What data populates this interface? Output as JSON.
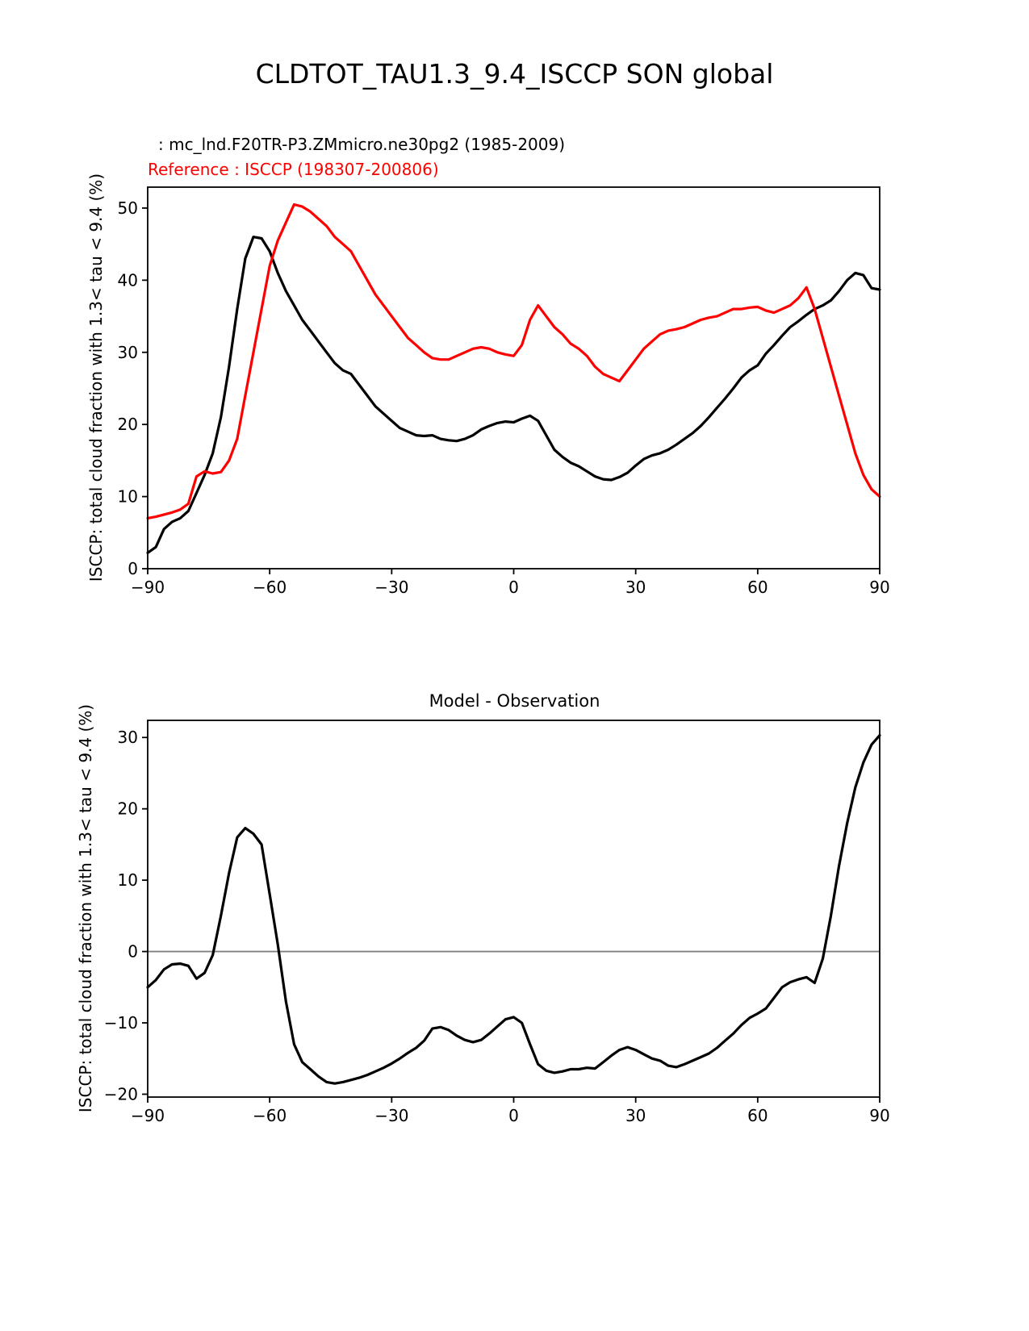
{
  "page": {
    "title": "CLDTOT_TAU1.3_9.4_ISCCP SON global",
    "background": "#ffffff"
  },
  "chart_data": [
    {
      "type": "line",
      "panel": "top",
      "model_label": ": mc_lnd.F20TR-P3.ZMmicro.ne30pg2 (1985-2009)",
      "reference_label": "Reference : ISCCP (198307-200806)",
      "ylabel": "ISCCP: total cloud fraction with 1.3< tau < 9.4 (%)",
      "xlabel": "",
      "xlim": [
        -90,
        90
      ],
      "ylim": [
        0,
        52.9
      ],
      "xticks": [
        -90,
        -60,
        -30,
        0,
        30,
        60,
        90
      ],
      "yticks": [
        0,
        10,
        20,
        30,
        40,
        50
      ],
      "grid": false,
      "legend_position": "labels-above-left",
      "axis_color": "#000000",
      "x": [
        -90,
        -88,
        -86,
        -84,
        -82,
        -80,
        -78,
        -76,
        -74,
        -72,
        -70,
        -68,
        -66,
        -64,
        -62,
        -60,
        -58,
        -56,
        -54,
        -52,
        -50,
        -48,
        -46,
        -44,
        -42,
        -40,
        -38,
        -36,
        -34,
        -32,
        -30,
        -28,
        -26,
        -24,
        -22,
        -20,
        -18,
        -16,
        -14,
        -12,
        -10,
        -8,
        -6,
        -4,
        -2,
        0,
        2,
        4,
        6,
        8,
        10,
        12,
        14,
        16,
        18,
        20,
        22,
        24,
        26,
        28,
        30,
        32,
        34,
        36,
        38,
        40,
        42,
        44,
        46,
        48,
        50,
        52,
        54,
        56,
        58,
        60,
        62,
        64,
        66,
        68,
        70,
        72,
        74,
        76,
        78,
        80,
        82,
        84,
        86,
        88,
        90
      ],
      "series": [
        {
          "id": "model",
          "name": "mc_lnd.F20TR-P3.ZMmicro.ne30pg2 (1985-2009)",
          "color": "#000000",
          "values": [
            2.2,
            3.0,
            5.5,
            6.5,
            7.0,
            8.0,
            10.5,
            13.0,
            16.0,
            21.0,
            28.0,
            36.0,
            43.0,
            46.0,
            45.8,
            44.0,
            41.0,
            38.5,
            36.5,
            34.5,
            33.0,
            31.5,
            30.0,
            28.5,
            27.5,
            27.0,
            25.5,
            24.0,
            22.5,
            21.5,
            20.5,
            19.5,
            19.0,
            18.5,
            18.4,
            18.5,
            18.0,
            17.8,
            17.7,
            18.0,
            18.5,
            19.3,
            19.8,
            20.2,
            20.4,
            20.3,
            20.8,
            21.2,
            20.5,
            18.5,
            16.5,
            15.5,
            14.7,
            14.2,
            13.5,
            12.8,
            12.4,
            12.3,
            12.7,
            13.3,
            14.3,
            15.2,
            15.7,
            16.0,
            16.5,
            17.2,
            18.0,
            18.8,
            19.8,
            21.0,
            22.3,
            23.6,
            25.0,
            26.5,
            27.5,
            28.2,
            29.8,
            31.0,
            32.3,
            33.5,
            34.3,
            35.2,
            36.0,
            36.5,
            37.2,
            38.5,
            40.0,
            41.0,
            40.7,
            38.9,
            38.7
          ]
        },
        {
          "id": "reference",
          "name": "ISCCP (198307-200806)",
          "color": "#ff0000",
          "values": [
            7.0,
            7.2,
            7.5,
            7.8,
            8.2,
            9.0,
            12.8,
            13.5,
            13.2,
            13.4,
            15.0,
            18.0,
            24.0,
            30.0,
            36.0,
            42.0,
            45.5,
            48.0,
            50.5,
            50.2,
            49.5,
            48.5,
            47.5,
            46.0,
            45.0,
            44.0,
            42.0,
            40.0,
            38.0,
            36.5,
            35.0,
            33.5,
            32.0,
            31.0,
            30.0,
            29.2,
            29.0,
            29.0,
            29.5,
            30.0,
            30.5,
            30.7,
            30.5,
            30.0,
            29.7,
            29.5,
            31.0,
            34.5,
            36.5,
            35.0,
            33.5,
            32.5,
            31.2,
            30.5,
            29.5,
            28.0,
            27.0,
            26.5,
            26.0,
            27.5,
            29.0,
            30.5,
            31.5,
            32.5,
            33.0,
            33.2,
            33.5,
            34.0,
            34.5,
            34.8,
            35.0,
            35.5,
            36.0,
            36.0,
            36.2,
            36.3,
            35.8,
            35.5,
            36.0,
            36.5,
            37.5,
            39.0,
            36.0,
            32.0,
            28.0,
            24.0,
            20.0,
            16.0,
            13.0,
            11.0,
            10.0
          ]
        }
      ]
    },
    {
      "type": "line",
      "panel": "bottom",
      "title": "Model - Observation",
      "ylabel": "ISCCP: total cloud fraction with 1.3< tau < 9.4 (%)",
      "xlabel": "",
      "xlim": [
        -90,
        90
      ],
      "ylim": [
        -20.4,
        32.4
      ],
      "xticks": [
        -90,
        -60,
        -30,
        0,
        30,
        60,
        90
      ],
      "yticks": [
        -20,
        -10,
        0,
        10,
        20,
        30
      ],
      "grid": false,
      "zero_line": true,
      "zero_line_color": "#808080",
      "axis_color": "#000000",
      "x": [
        -90,
        -88,
        -86,
        -84,
        -82,
        -80,
        -78,
        -76,
        -74,
        -72,
        -70,
        -68,
        -66,
        -64,
        -62,
        -60,
        -58,
        -56,
        -54,
        -52,
        -50,
        -48,
        -46,
        -44,
        -42,
        -40,
        -38,
        -36,
        -34,
        -32,
        -30,
        -28,
        -26,
        -24,
        -22,
        -20,
        -18,
        -16,
        -14,
        -12,
        -10,
        -8,
        -6,
        -4,
        -2,
        0,
        2,
        4,
        6,
        8,
        10,
        12,
        14,
        16,
        18,
        20,
        22,
        24,
        26,
        28,
        30,
        32,
        34,
        36,
        38,
        40,
        42,
        44,
        46,
        48,
        50,
        52,
        54,
        56,
        58,
        60,
        62,
        64,
        66,
        68,
        70,
        72,
        74,
        76,
        78,
        80,
        82,
        84,
        86,
        88,
        90
      ],
      "series": [
        {
          "id": "difference",
          "name": "Model - Observation",
          "color": "#000000",
          "values": [
            -5.0,
            -4.0,
            -2.5,
            -1.8,
            -1.7,
            -2.0,
            -3.8,
            -3.0,
            -0.5,
            5.0,
            11.0,
            16.0,
            17.3,
            16.5,
            15.0,
            8.0,
            1.0,
            -7.0,
            -13.0,
            -15.5,
            -16.5,
            -17.5,
            -18.3,
            -18.5,
            -18.3,
            -18.0,
            -17.7,
            -17.3,
            -16.8,
            -16.3,
            -15.7,
            -15.0,
            -14.2,
            -13.5,
            -12.5,
            -10.8,
            -10.6,
            -11.0,
            -11.8,
            -12.4,
            -12.7,
            -12.4,
            -11.5,
            -10.5,
            -9.5,
            -9.2,
            -10.0,
            -13.0,
            -15.8,
            -16.7,
            -17.0,
            -16.8,
            -16.5,
            -16.5,
            -16.3,
            -16.4,
            -15.5,
            -14.6,
            -13.8,
            -13.4,
            -13.8,
            -14.4,
            -15.0,
            -15.3,
            -16.0,
            -16.2,
            -15.8,
            -15.3,
            -14.8,
            -14.3,
            -13.5,
            -12.5,
            -11.5,
            -10.3,
            -9.3,
            -8.7,
            -8.0,
            -6.5,
            -5.0,
            -4.3,
            -3.9,
            -3.6,
            -4.4,
            -1.0,
            5.0,
            12.0,
            18.0,
            23.0,
            26.5,
            29.0,
            30.3
          ]
        }
      ]
    }
  ]
}
